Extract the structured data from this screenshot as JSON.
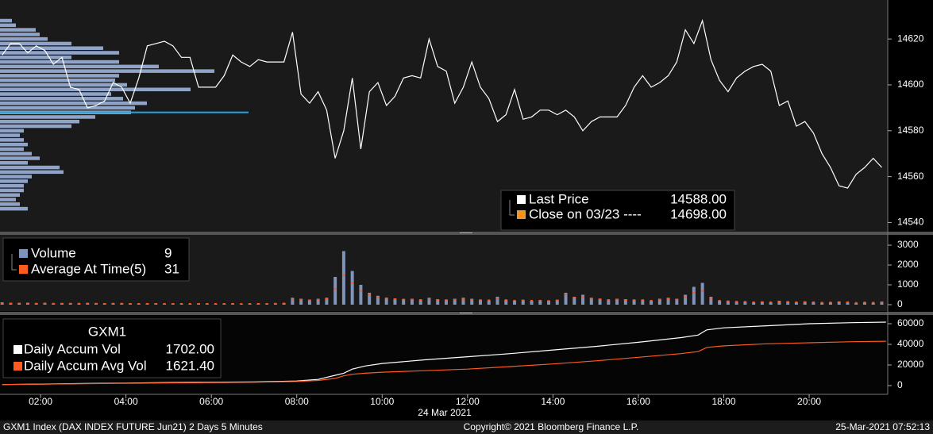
{
  "chart_data": [
    {
      "type": "line",
      "xlim": [
        1.05,
        21.84
      ],
      "ylim": [
        14536,
        14637
      ],
      "yticks": [
        14540,
        14560,
        14580,
        14600,
        14620
      ],
      "x": [
        1.1,
        1.3,
        1.5,
        1.7,
        1.9,
        2.1,
        2.3,
        2.5,
        2.7,
        2.9,
        3.1,
        3.3,
        3.5,
        3.7,
        3.9,
        4.1,
        4.3,
        4.5,
        4.7,
        4.9,
        5.1,
        5.3,
        5.5,
        5.7,
        5.9,
        6.1,
        6.3,
        6.5,
        6.7,
        6.9,
        7.1,
        7.3,
        7.5,
        7.7,
        7.9,
        8.1,
        8.3,
        8.5,
        8.7,
        8.9,
        9.1,
        9.3,
        9.5,
        9.7,
        9.9,
        10.1,
        10.3,
        10.5,
        10.7,
        10.9,
        11.1,
        11.3,
        11.5,
        11.7,
        11.9,
        12.1,
        12.3,
        12.5,
        12.7,
        12.9,
        13.1,
        13.3,
        13.5,
        13.7,
        13.9,
        14.1,
        14.3,
        14.5,
        14.7,
        14.9,
        15.1,
        15.3,
        15.5,
        15.7,
        15.9,
        16.1,
        16.3,
        16.5,
        16.7,
        16.9,
        17.1,
        17.3,
        17.5,
        17.7,
        17.9,
        18.1,
        18.3,
        18.5,
        18.7,
        18.9,
        19.1,
        19.3,
        19.5,
        19.7,
        19.9,
        20.1,
        20.3,
        20.5,
        20.7,
        20.9,
        21.1,
        21.3,
        21.5,
        21.7
      ],
      "series": [
        {
          "name": "Last Price",
          "color": "#ffffff",
          "values": [
            14613,
            14618,
            14618,
            14614,
            14617,
            14615,
            14609,
            14612,
            14599,
            14598,
            14590,
            14591,
            14593,
            14601,
            14599,
            14592,
            14603,
            14617,
            14618,
            14619,
            14617,
            14612,
            14612,
            14599,
            14599,
            14599,
            14604,
            14613,
            14610,
            14608,
            14611,
            14610,
            14610,
            14610,
            14623,
            14596,
            14592,
            14597,
            14589,
            14568,
            14580,
            14603,
            14572,
            14597,
            14601,
            14591,
            14595,
            14603,
            14604,
            14603,
            14620,
            14608,
            14606,
            14592,
            14599,
            14610,
            14599,
            14594,
            14584,
            14587,
            14598,
            14585,
            14586,
            14589,
            14589,
            14587,
            14589,
            14586,
            14580,
            14584,
            14586,
            14586,
            14586,
            14591,
            14599,
            14604,
            14599,
            14601,
            14604,
            14610,
            14624,
            14618,
            14628,
            14611,
            14602,
            14597,
            14603,
            14606,
            14608,
            14609,
            14606,
            14591,
            14593,
            14582,
            14584,
            14579,
            14570,
            14564,
            14556,
            14555,
            14561,
            14564,
            14568,
            14564
          ],
          "last_value": 14588,
          "last_value_label": "14588.00",
          "last_value_color": "#1ea7e1"
        }
      ],
      "reference_lines": [
        {
          "name": "Close on 03/23 ----",
          "color": "#f7941d",
          "value": 14698,
          "value_label": "14698.00"
        }
      ],
      "profile": {
        "color": "#8fa4c8",
        "xlim": [
          0,
          1118
        ],
        "levels": [
          14628,
          14626,
          14624,
          14622,
          14620,
          14618,
          14616,
          14614,
          14612,
          14610,
          14608,
          14606,
          14604,
          14602,
          14600,
          14598,
          14596,
          14594,
          14592,
          14590,
          14588,
          14586,
          14584,
          14582,
          14580,
          14578,
          14576,
          14574,
          14572,
          14570,
          14568,
          14566,
          14564,
          14562,
          14560,
          14558,
          14556,
          14554,
          14552,
          14550,
          14548,
          14546
        ],
        "values": [
          15,
          20,
          45,
          50,
          60,
          90,
          130,
          150,
          90,
          150,
          200,
          270,
          150,
          145,
          160,
          240,
          140,
          155,
          185,
          170,
          165,
          120,
          100,
          90,
          30,
          25,
          30,
          35,
          30,
          40,
          50,
          35,
          75,
          80,
          40,
          35,
          30,
          30,
          25,
          20,
          25,
          35
        ]
      }
    },
    {
      "type": "bar",
      "xlim": [
        1.05,
        21.84
      ],
      "ylim": [
        -320,
        3520
      ],
      "yticks": [
        0,
        1000,
        2000,
        3000
      ],
      "x": [
        1.1,
        1.3,
        1.5,
        1.7,
        1.9,
        2.1,
        2.3,
        2.5,
        2.7,
        2.9,
        3.1,
        3.3,
        3.5,
        3.7,
        3.9,
        4.1,
        4.3,
        4.5,
        4.7,
        4.9,
        5.1,
        5.3,
        5.5,
        5.7,
        5.9,
        6.1,
        6.3,
        6.5,
        6.7,
        6.9,
        7.1,
        7.3,
        7.5,
        7.7,
        7.9,
        8.1,
        8.3,
        8.5,
        8.7,
        8.9,
        9.1,
        9.3,
        9.5,
        9.7,
        9.9,
        10.1,
        10.3,
        10.5,
        10.7,
        10.9,
        11.1,
        11.3,
        11.5,
        11.7,
        11.9,
        12.1,
        12.3,
        12.5,
        12.7,
        12.9,
        13.1,
        13.3,
        13.5,
        13.7,
        13.9,
        14.1,
        14.3,
        14.5,
        14.7,
        14.9,
        15.1,
        15.3,
        15.5,
        15.7,
        15.9,
        16.1,
        16.3,
        16.5,
        16.7,
        16.9,
        17.1,
        17.3,
        17.5,
        17.7,
        17.9,
        18.1,
        18.3,
        18.5,
        18.7,
        18.9,
        19.1,
        19.3,
        19.5,
        19.7,
        19.9,
        20.1,
        20.3,
        20.5,
        20.7,
        20.9,
        21.1,
        21.3,
        21.5,
        21.7
      ],
      "series": [
        {
          "name": "Volume",
          "color": "#7f93bb",
          "mark": "bar",
          "last_value": 9,
          "values": [
            120,
            90,
            80,
            100,
            70,
            90,
            60,
            80,
            70,
            60,
            90,
            70,
            60,
            80,
            70,
            60,
            50,
            60,
            70,
            50,
            60,
            50,
            40,
            60,
            50,
            40,
            50,
            60,
            40,
            50,
            60,
            50,
            60,
            80,
            350,
            300,
            250,
            300,
            350,
            1400,
            2700,
            1700,
            1000,
            600,
            450,
            350,
            300,
            280,
            300,
            250,
            350,
            280,
            250,
            300,
            350,
            300,
            250,
            220,
            400,
            250,
            200,
            250,
            200,
            220,
            200,
            250,
            600,
            400,
            500,
            350,
            300,
            250,
            300,
            280,
            250,
            250,
            200,
            300,
            350,
            300,
            500,
            900,
            1100,
            400,
            200,
            180,
            150,
            150,
            120,
            150,
            120,
            200,
            150,
            120,
            150,
            130,
            100,
            120,
            150,
            130,
            80,
            120,
            100,
            150
          ]
        },
        {
          "name": "Average At Time(5)",
          "color": "#ff5a1f",
          "mark": "dot",
          "last_value": 31,
          "values": [
            70,
            60,
            60,
            60,
            50,
            60,
            50,
            50,
            50,
            50,
            50,
            50,
            40,
            50,
            50,
            40,
            40,
            40,
            40,
            40,
            40,
            40,
            40,
            40,
            40,
            40,
            40,
            40,
            40,
            40,
            40,
            40,
            50,
            60,
            250,
            250,
            220,
            250,
            280,
            800,
            1500,
            1100,
            700,
            500,
            380,
            320,
            280,
            260,
            260,
            240,
            260,
            240,
            230,
            250,
            260,
            250,
            230,
            220,
            300,
            230,
            200,
            210,
            200,
            200,
            190,
            210,
            500,
            350,
            380,
            300,
            270,
            240,
            260,
            240,
            230,
            230,
            200,
            250,
            280,
            260,
            380,
            600,
            700,
            330,
            200,
            170,
            150,
            140,
            120,
            130,
            120,
            160,
            140,
            120,
            130,
            120,
            100,
            110,
            130,
            120,
            90,
            110,
            100,
            120
          ]
        }
      ]
    },
    {
      "type": "line",
      "title": "GXM1",
      "xlim": [
        1.05,
        21.84
      ],
      "ylim": [
        -8460,
        68460
      ],
      "yticks": [
        0,
        20000,
        40000,
        60000
      ],
      "xticks": [
        {
          "value": 2,
          "label": "02:00"
        },
        {
          "value": 4,
          "label": "04:00"
        },
        {
          "value": 6,
          "label": "06:00"
        },
        {
          "value": 8,
          "label": "08:00"
        },
        {
          "value": 10,
          "label": "10:00"
        },
        {
          "value": 12,
          "label": "12:00"
        },
        {
          "value": 14,
          "label": "14:00"
        },
        {
          "value": 16,
          "label": "16:00"
        },
        {
          "value": 18,
          "label": "18:00"
        },
        {
          "value": 20,
          "label": "20:00"
        }
      ],
      "xlabel": "24 Mar 2021",
      "x": [
        1.1,
        2,
        3,
        4,
        5,
        6,
        7,
        8,
        8.5,
        8.9,
        9.1,
        9.3,
        9.6,
        10,
        11,
        12,
        13,
        14,
        15,
        16,
        17,
        17.4,
        17.6,
        18,
        19,
        20,
        21,
        21.8
      ],
      "series": [
        {
          "name": "Daily Accum Vol",
          "color": "#ffffff",
          "last_value": 1702,
          "last_value_label": "1702.00",
          "values": [
            1000,
            1500,
            2000,
            2500,
            3000,
            3300,
            3600,
            4500,
            6000,
            10000,
            12000,
            16000,
            19000,
            21500,
            25000,
            28000,
            31000,
            34500,
            38000,
            42000,
            46500,
            49000,
            54000,
            56000,
            58000,
            60000,
            61000,
            61500
          ]
        },
        {
          "name": "Daily Accum Avg Vol",
          "color": "#ff5a1f",
          "last_value": 1621.4,
          "last_value_label": "1621.40",
          "values": [
            1000,
            1400,
            1800,
            2200,
            2600,
            2900,
            3200,
            4000,
            5000,
            7000,
            9500,
            11000,
            12000,
            13000,
            14500,
            16000,
            18500,
            21000,
            24000,
            27500,
            31000,
            33000,
            37000,
            38500,
            40500,
            41500,
            42500,
            43000
          ]
        }
      ]
    }
  ],
  "footer": {
    "left": "GXM1 Index (DAX INDEX FUTURE  Jun21) 2 Days 5 Minutes",
    "center": "Copyright© 2021 Bloomberg Finance L.P.",
    "right": "25-Mar-2021 07:52:13"
  }
}
